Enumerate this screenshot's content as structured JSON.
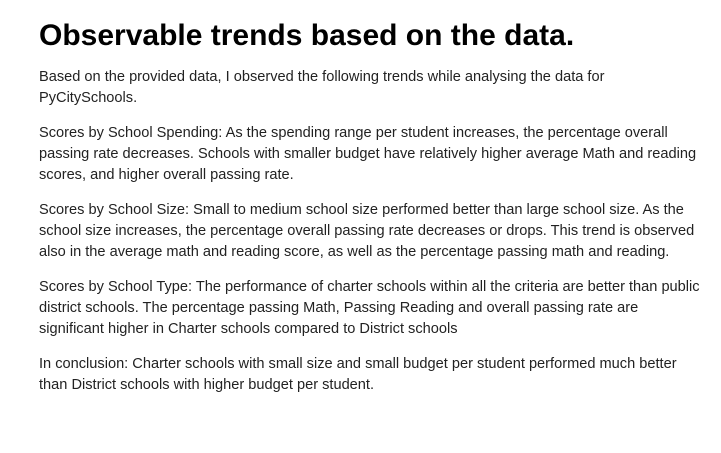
{
  "heading": "Observable trends based on the data.",
  "paragraphs": [
    "Based on the provided data, I observed the following trends while analysing the data for PyCitySchools.",
    "Scores by School Spending: As the spending range per student increases, the percentage overall passing rate decreases. Schools with smaller budget have relatively higher average Math and reading scores, and higher overall passing rate.",
    "Scores by School Size: Small to medium school size performed better than large school size. As the school size increases, the percentage overall passing rate decreases or drops. This trend is observed also in the average math and reading score, as well as the percentage passing math and reading.",
    "Scores by School Type: The performance of charter schools within all the criteria are better than public district schools. The percentage passing Math, Passing Reading and overall passing rate are significant higher in Charter schools compared to District schools",
    "In conclusion: Charter schools with small size and small budget per student performed much better than District schools with higher budget per student."
  ]
}
